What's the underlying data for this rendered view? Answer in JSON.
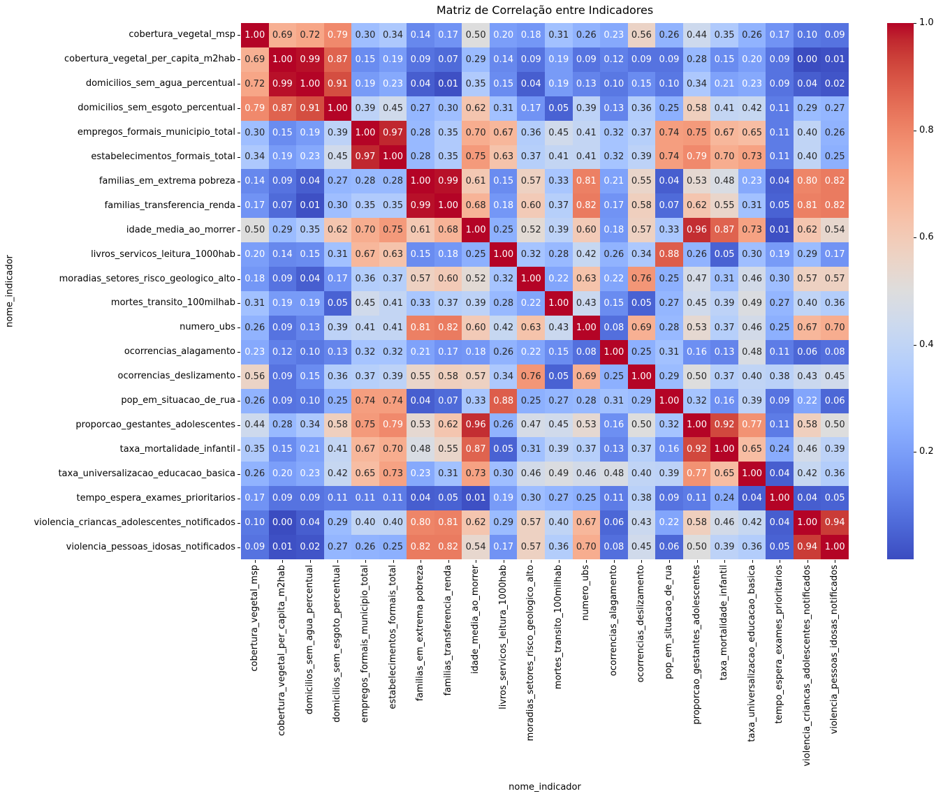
{
  "chart_data": {
    "type": "heatmap",
    "title": "Matriz de Correlação entre Indicadores",
    "xlabel": "nome_indicador",
    "ylabel": "nome_indicador",
    "grid": false,
    "legend_position": "colorbar-right",
    "vmin": 0.0,
    "vmax": 1.0,
    "background": "#ffffff",
    "annotation_colors": {
      "dark": "#262626",
      "light": "#ffffff"
    },
    "colormap": {
      "name": "coolwarm",
      "stops": [
        "#3B4CC0",
        "#445ACC",
        "#4D68D7",
        "#5775E1",
        "#6282EA",
        "#6C8EF1",
        "#779AF7",
        "#82A5FB",
        "#8DB0FE",
        "#98B9FF",
        "#A3C2FF",
        "#AEC9FD",
        "#B8D0F9",
        "#C2D5F4",
        "#CCD9EE",
        "#D5DBE6",
        "#DDDDDD",
        "#E5D8D1",
        "#ECD3C5",
        "#F1CCB9",
        "#F5C4AD",
        "#F7BBA0",
        "#F7B194",
        "#F7A687",
        "#F49A7B",
        "#F18D6F",
        "#EC7F63",
        "#E57058",
        "#DE604D",
        "#D55042",
        "#CB3E38",
        "#C0282F",
        "#B40426"
      ]
    },
    "colorbar_ticks": [
      {
        "value": 1.0,
        "label": "1.0"
      },
      {
        "value": 0.8,
        "label": "0.8"
      },
      {
        "value": 0.6,
        "label": "0.6"
      },
      {
        "value": 0.4,
        "label": "0.4"
      },
      {
        "value": 0.2,
        "label": "0.2"
      }
    ],
    "labels": [
      "cobertura_vegetal_msp",
      "cobertura_vegetal_per_capita_m2hab",
      "domicilios_sem_agua_percentual",
      "domicilios_sem_esgoto_percentual",
      "empregos_formais_municipio_total",
      "estabelecimentos_formais_total",
      "familias_em_extrema pobreza",
      "familias_transferencia_renda",
      "idade_media_ao_morrer",
      "livros_servicos_leitura_1000hab",
      "moradias_setores_risco_geologico_alto",
      "mortes_transito_100milhab",
      "numero_ubs",
      "ocorrencias_alagamento",
      "ocorrencias_deslizamento",
      "pop_em_situacao_de_rua",
      "proporcao_gestantes_adolescentes",
      "taxa_mortalidade_infantil",
      "taxa_universalizacao_educacao_basica",
      "tempo_espera_exames_prioritarios",
      "violencia_criancas_adolescentes_notificados",
      "violencia_pessoas_idosas_notificados"
    ],
    "matrix": [
      [
        1.0,
        0.69,
        0.72,
        0.79,
        0.3,
        0.34,
        0.14,
        0.17,
        0.5,
        0.2,
        0.18,
        0.31,
        0.26,
        0.23,
        0.56,
        0.26,
        0.44,
        0.35,
        0.26,
        0.17,
        0.1,
        0.09
      ],
      [
        0.69,
        1.0,
        0.99,
        0.87,
        0.15,
        0.19,
        0.09,
        0.07,
        0.29,
        0.14,
        0.09,
        0.19,
        0.09,
        0.12,
        0.09,
        0.09,
        0.28,
        0.15,
        0.2,
        0.09,
        0.0,
        0.01
      ],
      [
        0.72,
        0.99,
        1.0,
        0.91,
        0.19,
        0.23,
        0.04,
        0.01,
        0.35,
        0.15,
        0.04,
        0.19,
        0.13,
        0.1,
        0.15,
        0.1,
        0.34,
        0.21,
        0.23,
        0.09,
        0.04,
        0.02
      ],
      [
        0.79,
        0.87,
        0.91,
        1.0,
        0.39,
        0.45,
        0.27,
        0.3,
        0.62,
        0.31,
        0.17,
        0.05,
        0.39,
        0.13,
        0.36,
        0.25,
        0.58,
        0.41,
        0.42,
        0.11,
        0.29,
        0.27
      ],
      [
        0.3,
        0.15,
        0.19,
        0.39,
        1.0,
        0.97,
        0.28,
        0.35,
        0.7,
        0.67,
        0.36,
        0.45,
        0.41,
        0.32,
        0.37,
        0.74,
        0.75,
        0.67,
        0.65,
        0.11,
        0.4,
        0.26
      ],
      [
        0.34,
        0.19,
        0.23,
        0.45,
        0.97,
        1.0,
        0.28,
        0.35,
        0.75,
        0.63,
        0.37,
        0.41,
        0.41,
        0.32,
        0.39,
        0.74,
        0.79,
        0.7,
        0.73,
        0.11,
        0.4,
        0.25
      ],
      [
        0.14,
        0.09,
        0.04,
        0.27,
        0.28,
        0.28,
        1.0,
        0.99,
        0.61,
        0.15,
        0.57,
        0.33,
        0.81,
        0.21,
        0.55,
        0.04,
        0.53,
        0.48,
        0.23,
        0.04,
        0.8,
        0.82
      ],
      [
        0.17,
        0.07,
        0.01,
        0.3,
        0.35,
        0.35,
        0.99,
        1.0,
        0.68,
        0.18,
        0.6,
        0.37,
        0.82,
        0.17,
        0.58,
        0.07,
        0.62,
        0.55,
        0.31,
        0.05,
        0.81,
        0.82
      ],
      [
        0.5,
        0.29,
        0.35,
        0.62,
        0.7,
        0.75,
        0.61,
        0.68,
        1.0,
        0.25,
        0.52,
        0.39,
        0.6,
        0.18,
        0.57,
        0.33,
        0.96,
        0.87,
        0.73,
        0.01,
        0.62,
        0.54
      ],
      [
        0.2,
        0.14,
        0.15,
        0.31,
        0.67,
        0.63,
        0.15,
        0.18,
        0.25,
        1.0,
        0.32,
        0.28,
        0.42,
        0.26,
        0.34,
        0.88,
        0.26,
        0.05,
        0.3,
        0.19,
        0.29,
        0.17
      ],
      [
        0.18,
        0.09,
        0.04,
        0.17,
        0.36,
        0.37,
        0.57,
        0.6,
        0.52,
        0.32,
        1.0,
        0.22,
        0.63,
        0.22,
        0.76,
        0.25,
        0.47,
        0.31,
        0.46,
        0.3,
        0.57,
        0.57
      ],
      [
        0.31,
        0.19,
        0.19,
        0.05,
        0.45,
        0.41,
        0.33,
        0.37,
        0.39,
        0.28,
        0.22,
        1.0,
        0.43,
        0.15,
        0.05,
        0.27,
        0.45,
        0.39,
        0.49,
        0.27,
        0.4,
        0.36
      ],
      [
        0.26,
        0.09,
        0.13,
        0.39,
        0.41,
        0.41,
        0.81,
        0.82,
        0.6,
        0.42,
        0.63,
        0.43,
        1.0,
        0.08,
        0.69,
        0.28,
        0.53,
        0.37,
        0.46,
        0.25,
        0.67,
        0.7
      ],
      [
        0.23,
        0.12,
        0.1,
        0.13,
        0.32,
        0.32,
        0.21,
        0.17,
        0.18,
        0.26,
        0.22,
        0.15,
        0.08,
        1.0,
        0.25,
        0.31,
        0.16,
        0.13,
        0.48,
        0.11,
        0.06,
        0.08
      ],
      [
        0.56,
        0.09,
        0.15,
        0.36,
        0.37,
        0.39,
        0.55,
        0.58,
        0.57,
        0.34,
        0.76,
        0.05,
        0.69,
        0.25,
        1.0,
        0.29,
        0.5,
        0.37,
        0.4,
        0.38,
        0.43,
        0.45
      ],
      [
        0.26,
        0.09,
        0.1,
        0.25,
        0.74,
        0.74,
        0.04,
        0.07,
        0.33,
        0.88,
        0.25,
        0.27,
        0.28,
        0.31,
        0.29,
        1.0,
        0.32,
        0.16,
        0.39,
        0.09,
        0.22,
        0.06
      ],
      [
        0.44,
        0.28,
        0.34,
        0.58,
        0.75,
        0.79,
        0.53,
        0.62,
        0.96,
        0.26,
        0.47,
        0.45,
        0.53,
        0.16,
        0.5,
        0.32,
        1.0,
        0.92,
        0.77,
        0.11,
        0.58,
        0.5
      ],
      [
        0.35,
        0.15,
        0.21,
        0.41,
        0.67,
        0.7,
        0.48,
        0.55,
        0.87,
        0.05,
        0.31,
        0.39,
        0.37,
        0.13,
        0.37,
        0.16,
        0.92,
        1.0,
        0.65,
        0.24,
        0.46,
        0.39
      ],
      [
        0.26,
        0.2,
        0.23,
        0.42,
        0.65,
        0.73,
        0.23,
        0.31,
        0.73,
        0.3,
        0.46,
        0.49,
        0.46,
        0.48,
        0.4,
        0.39,
        0.77,
        0.65,
        1.0,
        0.04,
        0.42,
        0.36
      ],
      [
        0.17,
        0.09,
        0.09,
        0.11,
        0.11,
        0.11,
        0.04,
        0.05,
        0.01,
        0.19,
        0.3,
        0.27,
        0.25,
        0.11,
        0.38,
        0.09,
        0.11,
        0.24,
        0.04,
        1.0,
        0.04,
        0.05
      ],
      [
        0.1,
        0.0,
        0.04,
        0.29,
        0.4,
        0.4,
        0.8,
        0.81,
        0.62,
        0.29,
        0.57,
        0.4,
        0.67,
        0.06,
        0.43,
        0.22,
        0.58,
        0.46,
        0.42,
        0.04,
        1.0,
        0.94
      ],
      [
        0.09,
        0.01,
        0.02,
        0.27,
        0.26,
        0.25,
        0.82,
        0.82,
        0.54,
        0.17,
        0.57,
        0.36,
        0.7,
        0.08,
        0.45,
        0.06,
        0.5,
        0.39,
        0.36,
        0.05,
        0.94,
        1.0
      ]
    ]
  }
}
